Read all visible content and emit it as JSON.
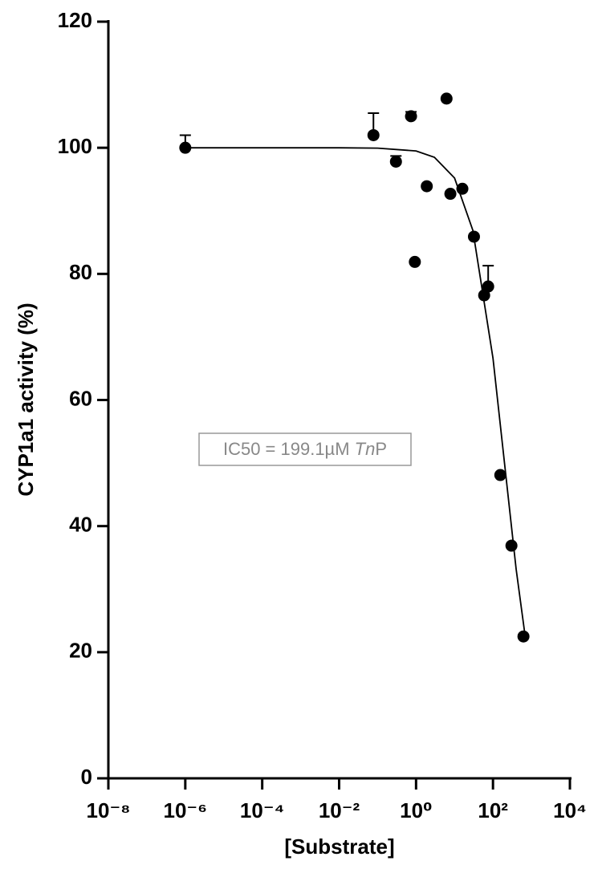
{
  "chart_data": {
    "type": "scatter",
    "ylabel": "CYP1a1 activity (%)",
    "xlabel": "[Substrate]",
    "annotation": [
      "IC50 = 199.1µM ",
      "Tn",
      "P"
    ],
    "log_x": true,
    "xlim": [
      1e-08,
      10000
    ],
    "xticks": [
      {
        "value": 1e-08,
        "label": "10⁻⁸"
      },
      {
        "value": 1e-06,
        "label": "10⁻⁶"
      },
      {
        "value": 0.0001,
        "label": "10⁻⁴"
      },
      {
        "value": 0.01,
        "label": "10⁻²"
      },
      {
        "value": 1,
        "label": "10⁰"
      },
      {
        "value": 100,
        "label": "10²"
      },
      {
        "value": 10000,
        "label": "10⁴"
      }
    ],
    "ylim": [
      0,
      120
    ],
    "yticks": [
      0,
      20,
      40,
      60,
      80,
      100,
      120
    ],
    "series": [
      {
        "color": "#000000",
        "x": [
          1e-06,
          0.078,
          0.3,
          0.74,
          0.93,
          1.9,
          6.2,
          7.8,
          16,
          32,
          59,
          75,
          155,
          302,
          620
        ],
        "values": [
          100,
          102,
          97.8,
          105,
          81.9,
          93.9,
          107.8,
          92.7,
          93.5,
          85.9,
          76.6,
          78,
          48.1,
          36.9,
          22.5
        ],
        "errors": [
          2,
          3.5,
          0.9,
          0.7,
          null,
          null,
          null,
          null,
          null,
          null,
          null,
          3.3,
          null,
          null,
          null
        ]
      }
    ],
    "fit": {
      "color": "#000000",
      "x": [
        1e-06,
        0.0001,
        0.01,
        0.1,
        1,
        3,
        10,
        30,
        100,
        200,
        400,
        700
      ],
      "values": [
        100,
        100,
        100,
        99.95,
        99.5,
        98.5,
        95.2,
        86.9,
        66.6,
        49.9,
        33.2,
        22.1
      ]
    }
  }
}
